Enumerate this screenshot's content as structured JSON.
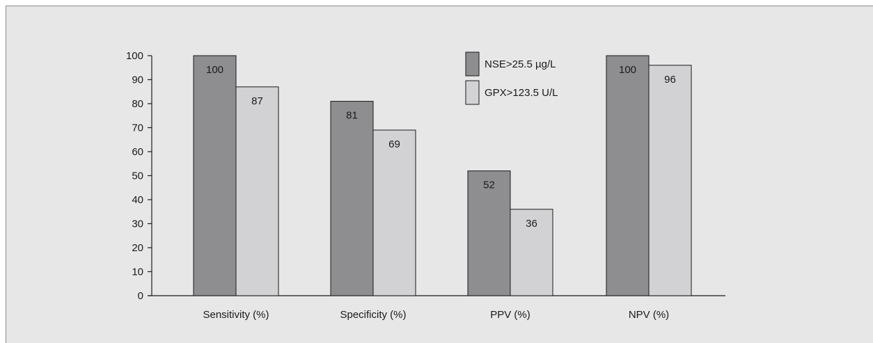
{
  "chart_data": {
    "type": "bar",
    "title": "",
    "xlabel": "",
    "ylabel": "",
    "categories": [
      "Sensitivity (%)",
      "Specificity (%)",
      "PPV (%)",
      "NPV (%)"
    ],
    "series": [
      {
        "name": "NSE>25.5 µg/L",
        "values": [
          100,
          81,
          52,
          100
        ],
        "color": "#8e8e91"
      },
      {
        "name": "GPX>123.5 U/L",
        "values": [
          87,
          69,
          36,
          96
        ],
        "color": "#d2d2d4"
      }
    ],
    "data_labels": [
      [
        "100",
        "81",
        "52",
        "100"
      ],
      [
        "87",
        "69",
        "36",
        "96"
      ]
    ],
    "yticks": [
      0,
      10,
      20,
      30,
      40,
      50,
      60,
      70,
      80,
      90,
      100
    ],
    "ylim": [
      0,
      100
    ],
    "grid": false,
    "legend_position": "top-right"
  }
}
